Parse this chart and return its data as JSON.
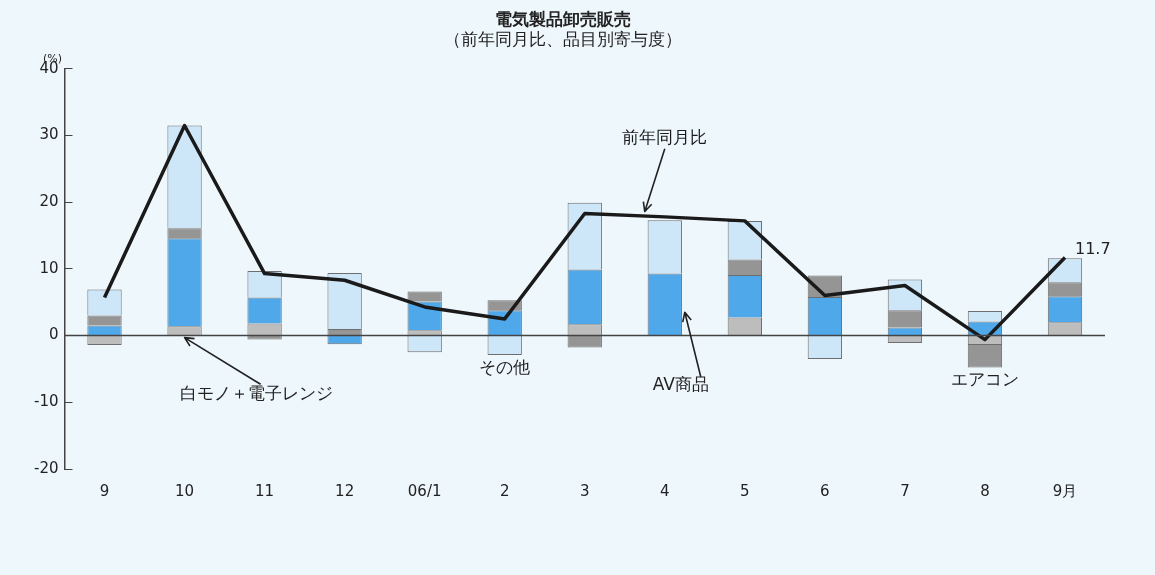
{
  "chart_data": {
    "type": "bar",
    "title": "電気製品卸売販売",
    "subtitle": "（前年同月比、品目別寄与度）",
    "ylabel": "(%)",
    "categories": [
      "9",
      "10",
      "11",
      "12",
      "06/1",
      "2",
      "3",
      "4",
      "5",
      "6",
      "7",
      "8",
      "9月"
    ],
    "stacked": true,
    "ylim": [
      -20,
      40
    ],
    "yticks": [
      -20,
      -10,
      0,
      10,
      20,
      30,
      40
    ],
    "ref_lines": [
      {
        "axis": "y",
        "value": 0,
        "color": "#444444"
      }
    ],
    "series": [
      {
        "name": "白モノ＋電子レンジ",
        "color": "#bdbdbd",
        "values": [
          -1.4,
          1.4,
          1.8,
          0,
          0.8,
          0,
          1.7,
          0,
          2.7,
          0,
          -1.1,
          -1.4,
          2.0
        ]
      },
      {
        "name": "AV商品",
        "color": "#4fa8ea",
        "values": [
          1.5,
          13.2,
          3.9,
          -1.3,
          4.3,
          3.8,
          8.2,
          9.3,
          6.4,
          5.8,
          1.2,
          2.1,
          3.9
        ]
      },
      {
        "name": "エアコン",
        "color": "#959595",
        "values": [
          1.5,
          1.5,
          -0.6,
          1.0,
          1.5,
          1.5,
          -1.8,
          0,
          2.3,
          3.2,
          2.6,
          -3.4,
          2.1
        ]
      },
      {
        "name": "その他",
        "color": "#cde6f8",
        "values": [
          3.9,
          15.4,
          4.0,
          8.4,
          -2.5,
          -2.9,
          10.0,
          8.0,
          5.8,
          -3.5,
          4.6,
          1.6,
          3.6
        ]
      },
      {
        "name": "前年同月比",
        "type": "line",
        "color": "#1a1a1a",
        "marker": "none",
        "line_style": "solid",
        "values": [
          5.7,
          31.5,
          9.3,
          8.3,
          4.3,
          2.5,
          18.3,
          17.8,
          17.2,
          6.0,
          7.5,
          -0.6,
          11.7
        ],
        "value_labels": [
          null,
          null,
          null,
          null,
          null,
          null,
          null,
          null,
          null,
          null,
          null,
          null,
          "11.7"
        ]
      }
    ]
  }
}
